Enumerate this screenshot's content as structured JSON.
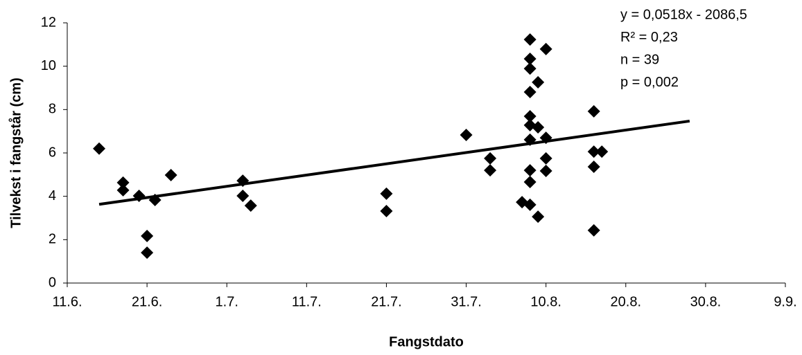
{
  "chart_data": {
    "type": "scatter",
    "x_label": "Fangstdato",
    "y_label": "Tilvekst i fangstår (cm)",
    "annotations": [
      "y = 0,0518x - 2086,5",
      "R² = 0,23",
      "n = 39",
      "p = 0,002"
    ],
    "xlim": [
      162,
      252
    ],
    "ylim": [
      0,
      12
    ],
    "xticks": [
      {
        "value": 162,
        "label": "11.6."
      },
      {
        "value": 172,
        "label": "21.6."
      },
      {
        "value": 182,
        "label": "1.7."
      },
      {
        "value": 192,
        "label": "11.7."
      },
      {
        "value": 202,
        "label": "21.7."
      },
      {
        "value": 212,
        "label": "31.7."
      },
      {
        "value": 222,
        "label": "10.8."
      },
      {
        "value": 232,
        "label": "20.8."
      },
      {
        "value": 242,
        "label": "30.8."
      },
      {
        "value": 252,
        "label": "9.9."
      }
    ],
    "yticks": [
      0,
      2,
      4,
      6,
      8,
      10,
      12
    ],
    "color": "#000000",
    "x": [
      166,
      169,
      169,
      171,
      172,
      172,
      173,
      175,
      184,
      184,
      185,
      202,
      202,
      212,
      215,
      215,
      219,
      220,
      220,
      220,
      220,
      220,
      220,
      220,
      220,
      220,
      220,
      221,
      221,
      221,
      222,
      222,
      222,
      222,
      228,
      228,
      228,
      228,
      229
    ],
    "y": [
      6.2,
      4.63,
      4.28,
      4.02,
      2.17,
      1.4,
      3.83,
      4.98,
      4.72,
      4.02,
      3.57,
      4.12,
      3.32,
      6.83,
      5.75,
      5.2,
      3.73,
      11.23,
      10.34,
      9.89,
      8.81,
      7.69,
      7.28,
      6.61,
      5.2,
      4.66,
      3.61,
      9.26,
      7.18,
      3.06,
      10.79,
      6.7,
      5.75,
      5.17,
      7.92,
      6.06,
      5.36,
      2.43,
      6.06
    ],
    "trendline": {
      "x": [
        166,
        240
      ],
      "y": [
        3.63,
        7.47
      ]
    }
  }
}
